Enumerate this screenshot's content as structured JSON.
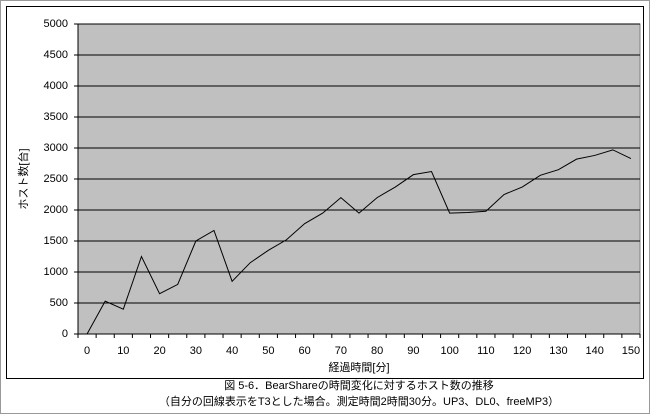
{
  "chart_data": {
    "type": "line",
    "x_label": "経過時間[分]",
    "y_label": "ホスト数[台]",
    "caption": [
      "図 5-6．BearShareの時間変化に対するホスト数の推移",
      "（自分の回線表示をT3とした場合。測定時間2時間30分。UP3、DL0、freeMP3）"
    ],
    "categories": [
      "0",
      null,
      "10",
      null,
      "20",
      null,
      "30",
      null,
      "40",
      null,
      "50",
      null,
      "60",
      null,
      "70",
      null,
      "80",
      null,
      "90",
      null,
      "100",
      null,
      "110",
      null,
      "120",
      null,
      "130",
      null,
      "140",
      null,
      "150"
    ],
    "values": [
      0,
      530,
      400,
      1250,
      650,
      800,
      1500,
      1670,
      850,
      1150,
      1350,
      1520,
      1780,
      1950,
      2200,
      1950,
      2200,
      2370,
      2570,
      2620,
      1950,
      1960,
      1980,
      2250,
      2370,
      2560,
      2650,
      2820,
      2880,
      2970,
      2830
    ],
    "color": "#000000",
    "plot_background": "#c0c0c0",
    "ylim": [
      0,
      5000
    ],
    "yticks": [
      0,
      500,
      1000,
      1500,
      2000,
      2500,
      3000,
      3500,
      4000,
      4500,
      5000
    ],
    "grid": true
  }
}
